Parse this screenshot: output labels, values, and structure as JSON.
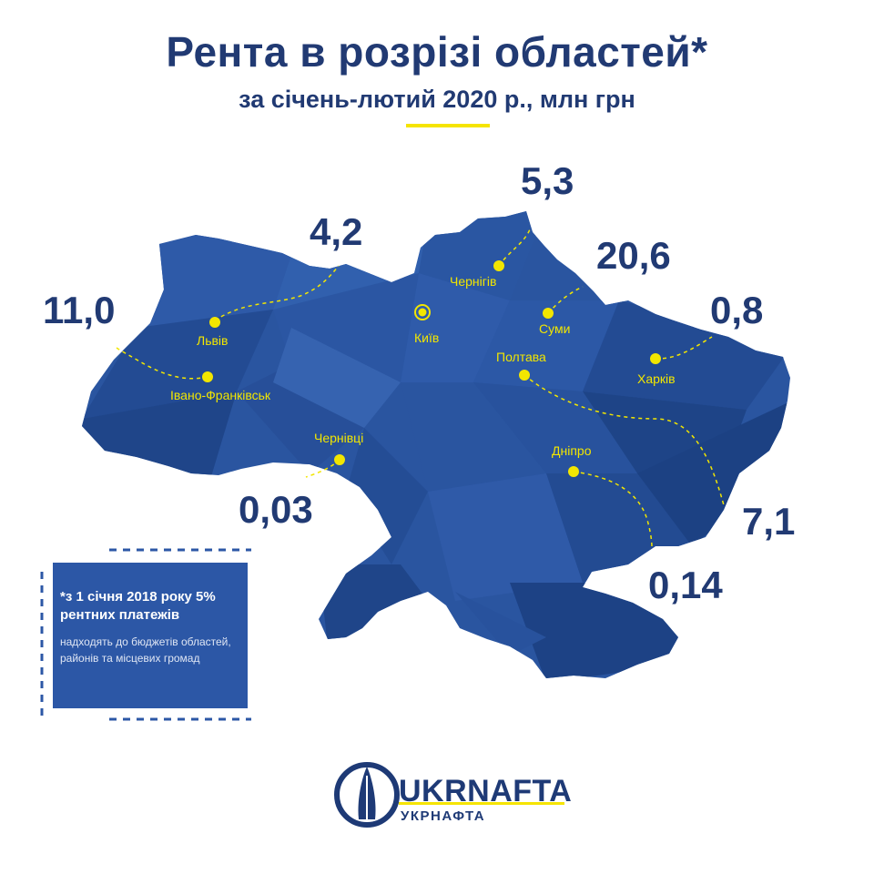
{
  "header": {
    "title": "Рента в розрізі областей*",
    "subtitle": "за січень-лютий 2020 р., млн грн"
  },
  "colors": {
    "navy": "#213a73",
    "map_blue": "#2a55a0",
    "accent_yellow": "#f5e400"
  },
  "map": {
    "regions": [
      {
        "city": "Львів",
        "value": "4,2"
      },
      {
        "city": "Івано-Франківськ",
        "value": "11,0"
      },
      {
        "city": "Чернівці",
        "value": "0,03"
      },
      {
        "city": "Київ",
        "value": ""
      },
      {
        "city": "Чернігів",
        "value": "5,3"
      },
      {
        "city": "Суми",
        "value": "20,6"
      },
      {
        "city": "Харків",
        "value": "0,8"
      },
      {
        "city": "Полтава",
        "value": "7,1"
      },
      {
        "city": "Дніпро",
        "value": "0,14"
      }
    ]
  },
  "note": {
    "title": "*з 1 січня 2018 року 5% рентних платежів",
    "body": "надходять до бюджетів областей, районів та місцевих громад"
  },
  "logo": {
    "name": "UKRNAFTA",
    "subtitle": "УКРНАФТА",
    "icon": "ukrnafta-logo-icon"
  }
}
